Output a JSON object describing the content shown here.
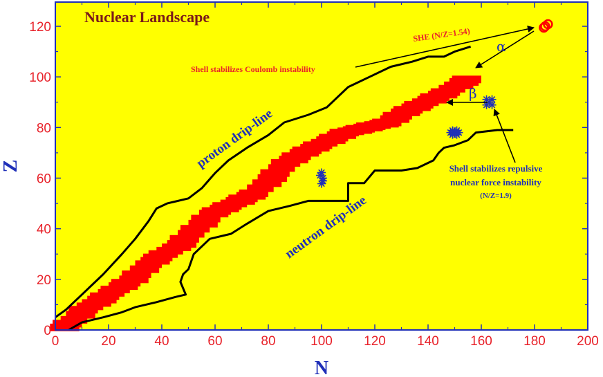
{
  "chart_data": {
    "type": "scatter",
    "title": "Nuclear Landscape",
    "xlabel": "N",
    "ylabel": "Z",
    "xlim": [
      0,
      200
    ],
    "ylim": [
      0,
      130
    ],
    "x_ticks": [
      0,
      20,
      40,
      60,
      80,
      100,
      120,
      140,
      160,
      180,
      200
    ],
    "y_ticks": [
      0,
      20,
      40,
      60,
      80,
      100,
      120
    ],
    "grid": false,
    "colors": {
      "background": "#ffff00",
      "stable_band": "#ff0000",
      "islands": "#1f2fb8",
      "she": "#ff0000",
      "lines": "#000000"
    },
    "series": [
      {
        "name": "proton drip-line",
        "points": [
          [
            0,
            5
          ],
          [
            4,
            8
          ],
          [
            10,
            14
          ],
          [
            18,
            22
          ],
          [
            25,
            30
          ],
          [
            30,
            36
          ],
          [
            35,
            43
          ],
          [
            38,
            48
          ],
          [
            42,
            50
          ],
          [
            50,
            52
          ],
          [
            55,
            56
          ],
          [
            60,
            62
          ],
          [
            65,
            67
          ],
          [
            72,
            72
          ],
          [
            80,
            77
          ],
          [
            86,
            82
          ],
          [
            95,
            85
          ],
          [
            102,
            88
          ],
          [
            110,
            96
          ],
          [
            118,
            100
          ],
          [
            126,
            104
          ],
          [
            134,
            106
          ],
          [
            140,
            108
          ],
          [
            146,
            108
          ],
          [
            150,
            110
          ],
          [
            156,
            112
          ]
        ]
      },
      {
        "name": "neutron drip-line",
        "points": [
          [
            5,
            0
          ],
          [
            10,
            3
          ],
          [
            18,
            5
          ],
          [
            25,
            7
          ],
          [
            30,
            9
          ],
          [
            38,
            11
          ],
          [
            45,
            13
          ],
          [
            49,
            14
          ],
          [
            47,
            19
          ],
          [
            48,
            22
          ],
          [
            50,
            24
          ],
          [
            52,
            30
          ],
          [
            58,
            36
          ],
          [
            66,
            38
          ],
          [
            72,
            42
          ],
          [
            80,
            47
          ],
          [
            88,
            49
          ],
          [
            95,
            51
          ],
          [
            110,
            51
          ],
          [
            110,
            58
          ],
          [
            116,
            58
          ],
          [
            120,
            63
          ],
          [
            130,
            63
          ],
          [
            136,
            64
          ],
          [
            142,
            67
          ],
          [
            144,
            70
          ],
          [
            146,
            72
          ],
          [
            150,
            73
          ],
          [
            155,
            75
          ],
          [
            158,
            78
          ],
          [
            166,
            79
          ],
          [
            172,
            79
          ]
        ]
      },
      {
        "name": "stable band",
        "points": [
          [
            2,
            1
          ],
          [
            6,
            4
          ],
          [
            10,
            8
          ],
          [
            16,
            12
          ],
          [
            22,
            16
          ],
          [
            28,
            20
          ],
          [
            34,
            26
          ],
          [
            40,
            30
          ],
          [
            46,
            34
          ],
          [
            52,
            40
          ],
          [
            58,
            46
          ],
          [
            66,
            50
          ],
          [
            74,
            54
          ],
          [
            80,
            60
          ],
          [
            86,
            66
          ],
          [
            92,
            70
          ],
          [
            100,
            74
          ],
          [
            108,
            78
          ],
          [
            116,
            80
          ],
          [
            124,
            82
          ],
          [
            130,
            86
          ],
          [
            138,
            90
          ],
          [
            146,
            94
          ],
          [
            152,
            98
          ],
          [
            156,
            100
          ]
        ],
        "half_width": 4
      },
      {
        "name": "island 1",
        "points": [
          [
            100,
            60
          ]
        ]
      },
      {
        "name": "island 2",
        "points": [
          [
            150,
            78
          ]
        ]
      },
      {
        "name": "island 3",
        "points": [
          [
            163,
            90
          ]
        ]
      },
      {
        "name": "SHE",
        "points": [
          [
            184,
            120
          ]
        ]
      }
    ],
    "annotations": {
      "she": "SHE (N/Z=1.54)",
      "coulomb": "Shell stabilizes Coulomb instability",
      "alpha": "α",
      "beta": "β",
      "proton": "proton drip-line",
      "neutron": "neutron drip-line",
      "repulsive_line1": "Shell stabilizes repulsive",
      "repulsive_line2": "nuclear force instability",
      "repulsive_line3": "(N/Z=1.9)"
    }
  }
}
